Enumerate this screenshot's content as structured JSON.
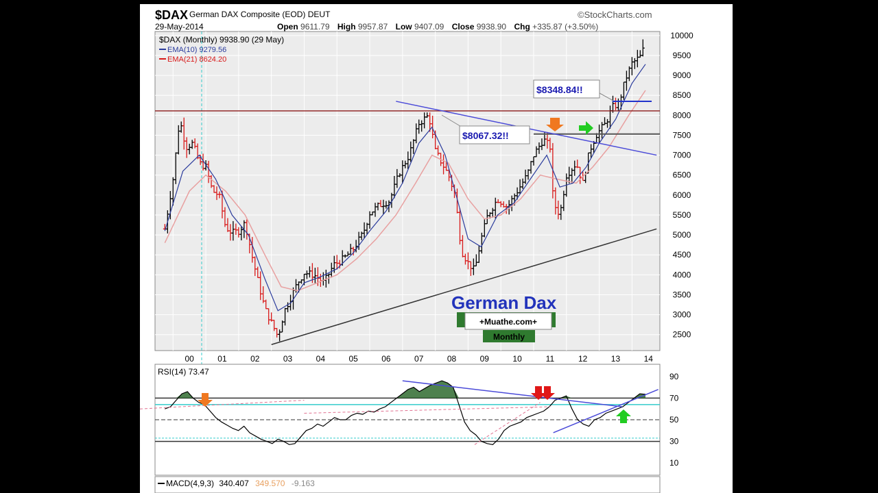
{
  "header": {
    "symbol": "$DAX",
    "name": "German DAX Composite (EOD)",
    "exchange": "DEUT",
    "date": "29-May-2014",
    "brand": "©StockCharts.com",
    "open_label": "Open",
    "open": "9611.79",
    "high_label": "High",
    "high": "9957.87",
    "low_label": "Low",
    "low": "9407.09",
    "close_label": "Close",
    "close": "9938.90",
    "chg_label": "Chg",
    "chg": "+335.87 (+3.50%)"
  },
  "legend": {
    "main": "$DAX (Monthly) 9938.90 (29 May)",
    "ema10": "EMA(10) 9279.56",
    "ema21": "EMA(21) 8624.20"
  },
  "annotations": {
    "label1": "$8067.32!!",
    "label2": "$8348.84!!",
    "title": "German Dax",
    "site": "+Muathe.com+",
    "period": "Monthly"
  },
  "rsi_legend": "RSI(14) 73.47",
  "macd_legend": {
    "name": "MACD(4,9,3)",
    "v1": "340.407",
    "v2": "349.570",
    "v3": "-9.163"
  },
  "colors": {
    "up": "#000000",
    "down": "#d81818",
    "ema10": "#2a3b9c",
    "ema21": "#e8a0a0",
    "hline": "#8b1a1a",
    "trend_blue": "#4a4ad8",
    "rsi_fill": "#2f6b2f"
  },
  "chart_data": [
    {
      "type": "ohlc",
      "title": "German DAX Composite (EOD)",
      "x_ticks": [
        "00",
        "01",
        "02",
        "03",
        "04",
        "05",
        "06",
        "07",
        "08",
        "09",
        "10",
        "11",
        "12",
        "13",
        "14"
      ],
      "y_ticks": [
        2500,
        3000,
        3500,
        4000,
        4500,
        5000,
        5500,
        6000,
        6500,
        7000,
        7500,
        8000,
        8500,
        9000,
        9500,
        10000
      ],
      "ylim": [
        2100,
        10100
      ],
      "close_path": [
        [
          1999.75,
          5150
        ],
        [
          2000.0,
          6400
        ],
        [
          2000.2,
          7900
        ],
        [
          2000.4,
          7200
        ],
        [
          2000.6,
          7300
        ],
        [
          2000.8,
          6800
        ],
        [
          2001.0,
          6700
        ],
        [
          2001.2,
          6100
        ],
        [
          2001.4,
          6000
        ],
        [
          2001.6,
          5200
        ],
        [
          2001.8,
          5050
        ],
        [
          2002.0,
          5100
        ],
        [
          2002.2,
          5300
        ],
        [
          2002.4,
          4500
        ],
        [
          2002.6,
          3800
        ],
        [
          2002.8,
          3150
        ],
        [
          2003.0,
          2800
        ],
        [
          2003.2,
          2450
        ],
        [
          2003.4,
          3100
        ],
        [
          2003.6,
          3450
        ],
        [
          2003.8,
          3800
        ],
        [
          2004.0,
          4050
        ],
        [
          2004.3,
          4000
        ],
        [
          2004.6,
          3800
        ],
        [
          2004.9,
          4250
        ],
        [
          2005.2,
          4400
        ],
        [
          2005.5,
          4650
        ],
        [
          2005.8,
          5050
        ],
        [
          2006.0,
          5550
        ],
        [
          2006.3,
          5750
        ],
        [
          2006.6,
          5850
        ],
        [
          2006.9,
          6550
        ],
        [
          2007.2,
          7000
        ],
        [
          2007.5,
          7800
        ],
        [
          2007.8,
          8000
        ],
        [
          2008.0,
          7100
        ],
        [
          2008.2,
          6800
        ],
        [
          2008.4,
          6500
        ],
        [
          2008.6,
          6000
        ],
        [
          2008.8,
          4600
        ],
        [
          2009.0,
          4300
        ],
        [
          2009.2,
          4100
        ],
        [
          2009.4,
          4900
        ],
        [
          2009.6,
          5500
        ],
        [
          2009.9,
          5900
        ],
        [
          2010.2,
          5700
        ],
        [
          2010.5,
          6100
        ],
        [
          2010.8,
          6500
        ],
        [
          2011.0,
          7000
        ],
        [
          2011.3,
          7400
        ],
        [
          2011.5,
          7200
        ],
        [
          2011.6,
          5800
        ],
        [
          2011.8,
          5500
        ],
        [
          2012.0,
          6500
        ],
        [
          2012.3,
          6800
        ],
        [
          2012.5,
          6300
        ],
        [
          2012.7,
          7100
        ],
        [
          2012.9,
          7500
        ],
        [
          2013.2,
          7800
        ],
        [
          2013.4,
          8200
        ],
        [
          2013.6,
          8300
        ],
        [
          2013.8,
          8900
        ],
        [
          2014.0,
          9300
        ],
        [
          2014.3,
          9500
        ],
        [
          2014.41,
          9938.9
        ]
      ],
      "ema10_path": [
        [
          1999.75,
          5100
        ],
        [
          2000.3,
          6600
        ],
        [
          2000.8,
          7000
        ],
        [
          2001.3,
          6400
        ],
        [
          2001.8,
          5500
        ],
        [
          2002.3,
          5000
        ],
        [
          2002.8,
          3900
        ],
        [
          2003.2,
          3100
        ],
        [
          2003.6,
          3300
        ],
        [
          2004.0,
          3800
        ],
        [
          2004.5,
          3950
        ],
        [
          2005.0,
          4150
        ],
        [
          2005.5,
          4550
        ],
        [
          2006.0,
          5100
        ],
        [
          2006.5,
          5600
        ],
        [
          2007.0,
          6300
        ],
        [
          2007.5,
          7300
        ],
        [
          2007.9,
          7700
        ],
        [
          2008.3,
          7000
        ],
        [
          2008.7,
          5800
        ],
        [
          2009.0,
          4900
        ],
        [
          2009.4,
          4700
        ],
        [
          2009.9,
          5500
        ],
        [
          2010.4,
          5800
        ],
        [
          2010.9,
          6400
        ],
        [
          2011.4,
          7000
        ],
        [
          2011.8,
          6200
        ],
        [
          2012.2,
          6300
        ],
        [
          2012.6,
          6700
        ],
        [
          2013.0,
          7300
        ],
        [
          2013.5,
          7900
        ],
        [
          2014.0,
          8800
        ],
        [
          2014.41,
          9279.56
        ]
      ],
      "ema21_path": [
        [
          1999.75,
          4800
        ],
        [
          2000.5,
          6100
        ],
        [
          2001.0,
          6500
        ],
        [
          2001.6,
          6100
        ],
        [
          2002.2,
          5500
        ],
        [
          2002.8,
          4500
        ],
        [
          2003.3,
          3700
        ],
        [
          2003.8,
          3600
        ],
        [
          2004.4,
          3800
        ],
        [
          2005.0,
          4000
        ],
        [
          2005.6,
          4400
        ],
        [
          2006.2,
          4900
        ],
        [
          2006.8,
          5500
        ],
        [
          2007.4,
          6300
        ],
        [
          2007.9,
          7000
        ],
        [
          2008.4,
          6800
        ],
        [
          2009.0,
          5900
        ],
        [
          2009.5,
          5400
        ],
        [
          2010.0,
          5500
        ],
        [
          2010.6,
          5900
        ],
        [
          2011.2,
          6500
        ],
        [
          2011.7,
          6400
        ],
        [
          2012.3,
          6300
        ],
        [
          2012.8,
          6700
        ],
        [
          2013.3,
          7200
        ],
        [
          2013.9,
          8000
        ],
        [
          2014.41,
          8624.2
        ]
      ],
      "horizontal_lines": [
        8110,
        7530,
        8348.84
      ],
      "trendlines": [
        [
          [
            2003.0,
            2250
          ],
          [
            2014.75,
            5150
          ]
        ],
        [
          [
            2006.8,
            8350
          ],
          [
            2014.75,
            7000
          ]
        ]
      ]
    },
    {
      "type": "line",
      "title": "RSI(14) 73.47",
      "y_ticks": [
        10,
        30,
        50,
        70,
        90
      ],
      "ylim": [
        0,
        100
      ],
      "x_start": 1999.75,
      "x_end": 2014.41,
      "values": [
        60,
        62,
        68,
        74,
        76,
        70,
        66,
        64,
        58,
        52,
        48,
        45,
        42,
        40,
        44,
        38,
        35,
        32,
        30,
        28,
        32,
        30,
        27,
        28,
        34,
        40,
        42,
        46,
        44,
        48,
        52,
        50,
        50,
        54,
        56,
        55,
        58,
        57,
        60,
        62,
        66,
        70,
        74,
        78,
        80,
        76,
        79,
        82,
        84,
        86,
        84,
        80,
        64,
        48,
        40,
        36,
        30,
        28,
        27,
        32,
        40,
        44,
        46,
        48,
        52,
        54,
        56,
        58,
        62,
        68,
        70,
        72,
        60,
        50,
        46,
        44,
        50,
        52,
        56,
        58,
        60,
        62,
        66,
        70,
        74,
        73.47
      ]
    },
    {
      "type": "line",
      "title": "MACD(4,9,3)",
      "values": [
        340.407,
        349.57,
        -9.163
      ]
    }
  ]
}
